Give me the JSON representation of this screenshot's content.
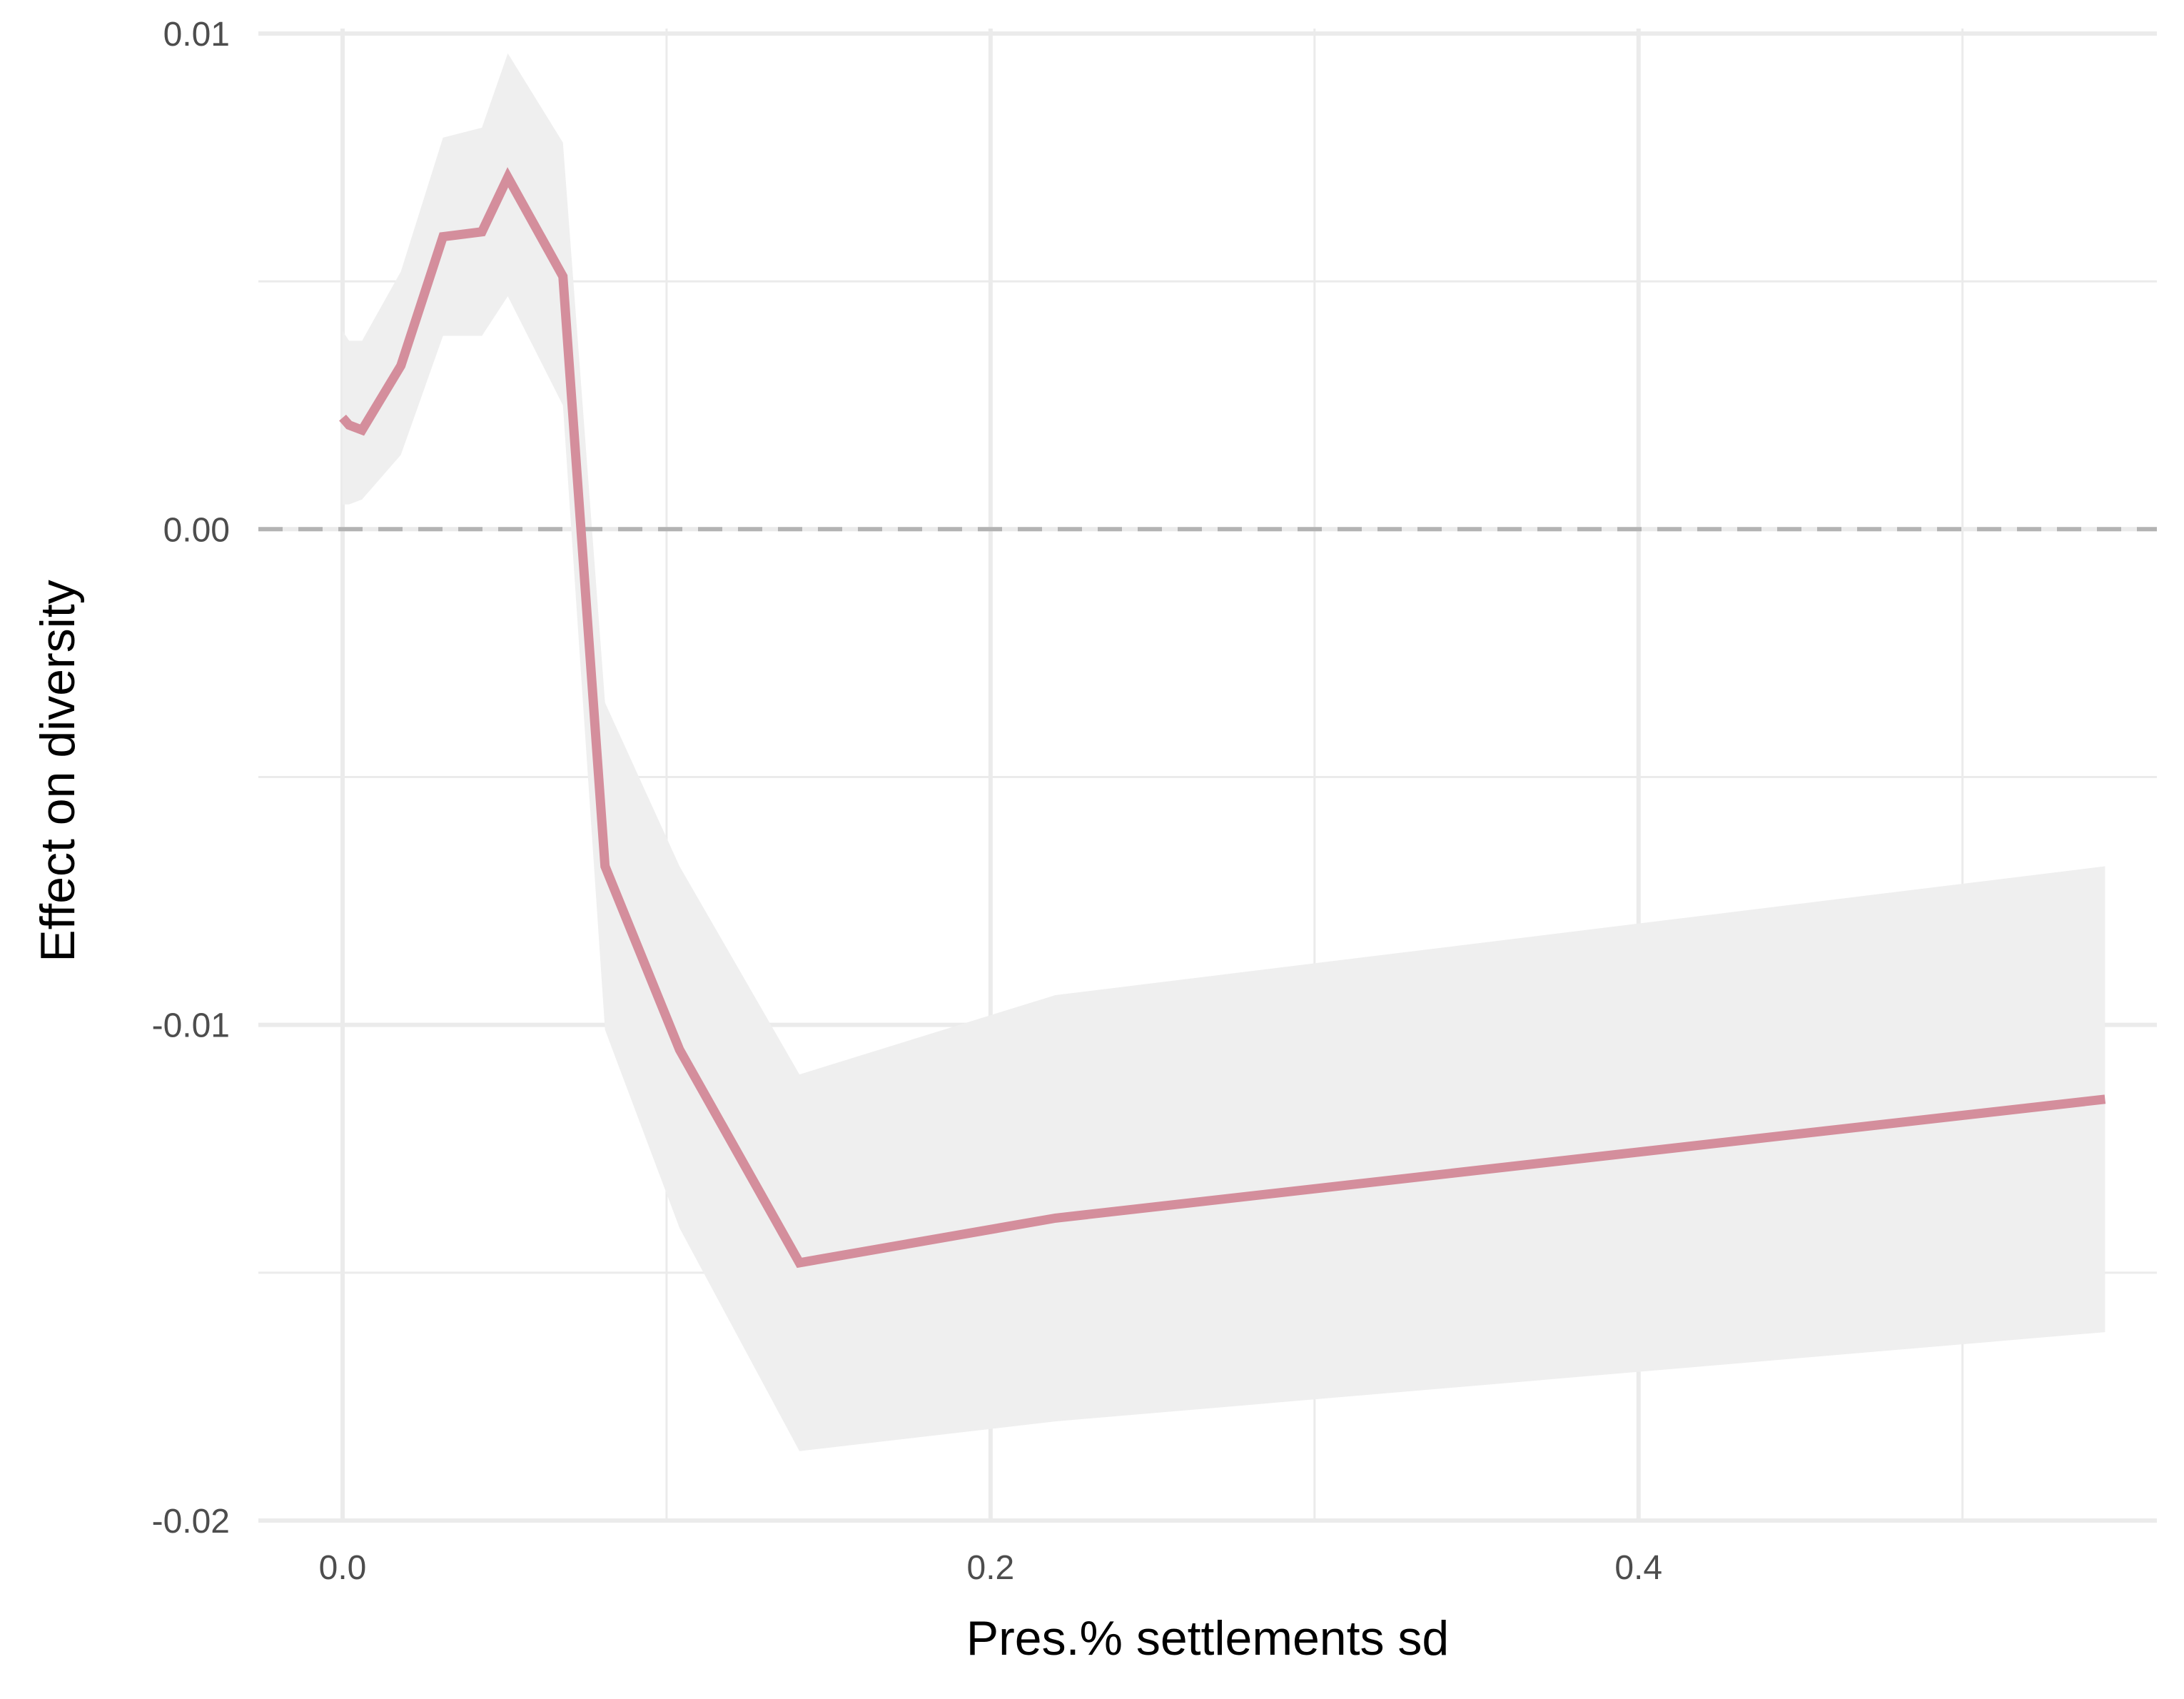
{
  "chart_data": {
    "type": "line",
    "title": "",
    "xlabel": "Pres.% settlements sd",
    "ylabel": "Effect on diversity",
    "xlim": [
      -0.026,
      0.56
    ],
    "ylim": [
      -0.02,
      0.0101
    ],
    "x_ticks": [
      {
        "value": 0.0,
        "label": "0.0"
      },
      {
        "value": 0.2,
        "label": "0.2"
      },
      {
        "value": 0.4,
        "label": "0.4"
      }
    ],
    "x_minor_ticks": [
      0.1,
      0.3,
      0.5
    ],
    "y_ticks": [
      {
        "value": 0.01,
        "label": "0.01"
      },
      {
        "value": 0.0,
        "label": "0.00"
      },
      {
        "value": -0.01,
        "label": "-0.01"
      },
      {
        "value": -0.02,
        "label": "-0.02"
      }
    ],
    "y_minor_ticks": [
      0.005,
      -0.005,
      -0.015
    ],
    "reference_line": {
      "y": 0.0,
      "style": "dashed",
      "color": "#b3b3b3"
    },
    "grid": true,
    "colors": {
      "line": "#d48e9c",
      "band": "#efefef",
      "grid": "#ebebeb"
    },
    "series": [
      {
        "x": [
          0.0,
          0.002,
          0.006,
          0.018,
          0.031,
          0.043,
          0.051,
          0.068,
          0.081,
          0.104,
          0.141,
          0.22,
          0.544
        ],
        "y": [
          0.00225,
          0.0021,
          0.002,
          0.0033,
          0.0059,
          0.006,
          0.0071,
          0.0051,
          -0.0068,
          -0.0105,
          -0.0148,
          -0.0139,
          -0.0115
        ],
        "lower": [
          0.0005,
          0.0005,
          0.0006,
          0.0015,
          0.0039,
          0.0039,
          0.0047,
          0.0025,
          -0.0101,
          -0.0141,
          -0.0186,
          -0.018,
          -0.0162
        ],
        "upper": [
          0.004,
          0.0038,
          0.0038,
          0.0052,
          0.0079,
          0.0081,
          0.0096,
          0.0078,
          -0.0035,
          -0.0068,
          -0.011,
          -0.0094,
          -0.0068
        ]
      }
    ]
  }
}
